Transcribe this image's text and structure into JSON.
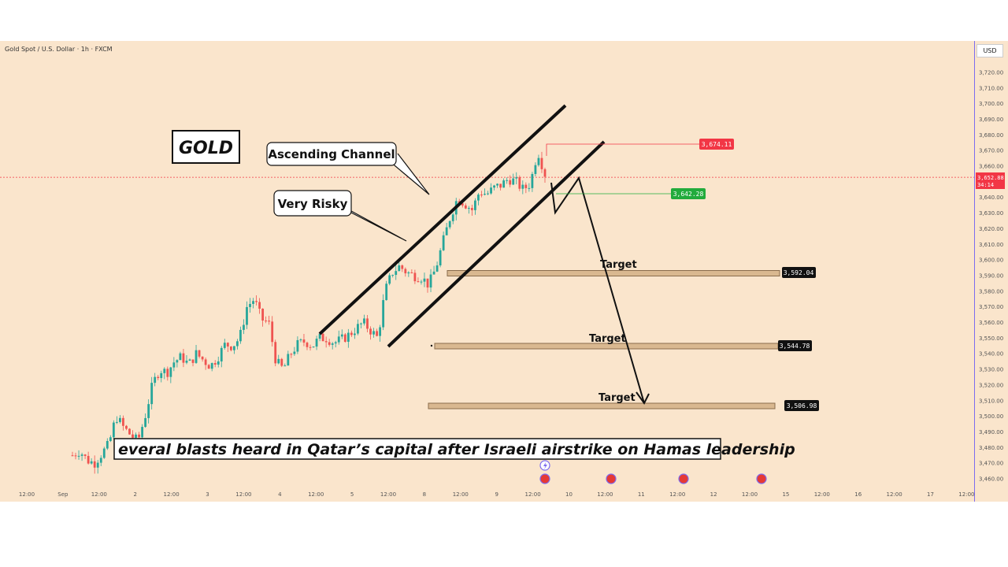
{
  "header": {
    "symbol_line": "Gold Spot / U.S. Dollar · 1h · FXCM",
    "currency": "USD"
  },
  "annotations": {
    "gold_label": "GOLD",
    "ascending_channel": "Ascending Channel",
    "very_risky": "Very Risky",
    "target_label": "Target",
    "news_banner": "everal blasts heard in Qatar’s capital after Israeli airstrike on Hamas leadership"
  },
  "price_tags": {
    "high": "3,674.11",
    "mid": "3,642.28",
    "current": "3,652.88",
    "countdown": "34:14",
    "target1": "3,592.04",
    "target2": "3,544.78",
    "target3": "3,506.98"
  },
  "colors": {
    "background": "#fae5cc",
    "up": "#26a69a",
    "down": "#ef5350",
    "red_tag": "#f23645",
    "green_tag": "#22ab3c",
    "target_zone": "#d9b890",
    "axis_border": "#7c6cf0"
  },
  "chart_data": {
    "type": "candlestick",
    "title": "Gold Spot / U.S. Dollar · 1h · FXCM",
    "ylim": [
      3455,
      3730
    ],
    "y_ticks": [
      "3,460.00",
      "3,470.00",
      "3,480.00",
      "3,490.00",
      "3,500.00",
      "3,510.00",
      "3,520.00",
      "3,530.00",
      "3,540.00",
      "3,550.00",
      "3,560.00",
      "3,570.00",
      "3,580.00",
      "3,590.00",
      "3,600.00",
      "3,610.00",
      "3,620.00",
      "3,630.00",
      "3,640.00",
      "3,650.00",
      "3,660.00",
      "3,670.00",
      "3,680.00",
      "3,690.00",
      "3,700.00",
      "3,710.00",
      "3,720.00"
    ],
    "x_ticks": [
      "12:00",
      "Sep",
      "12:00",
      "2",
      "12:00",
      "3",
      "12:00",
      "4",
      "12:00",
      "5",
      "12:00",
      "8",
      "12:00",
      "9",
      "12:00",
      "10",
      "12:00",
      "11",
      "12:00",
      "12",
      "12:00",
      "15",
      "12:00",
      "16",
      "12:00",
      "17",
      "12:00"
    ],
    "price_path": [
      3475,
      3478,
      3472,
      3470,
      3476,
      3482,
      3500,
      3493,
      3488,
      3484,
      3500,
      3520,
      3530,
      3528,
      3535,
      3538,
      3533,
      3540,
      3536,
      3532,
      3538,
      3546,
      3545,
      3550,
      3570,
      3575,
      3562,
      3560,
      3535,
      3530,
      3540,
      3546,
      3548,
      3545,
      3550,
      3550,
      3547,
      3549,
      3552,
      3556,
      3560,
      3555,
      3550,
      3580,
      3592,
      3596,
      3592,
      3590,
      3589,
      3584,
      3595,
      3612,
      3628,
      3640,
      3636,
      3632,
      3644,
      3642,
      3646,
      3648,
      3652,
      3650,
      3645,
      3649,
      3670,
      3655
    ],
    "levels": {
      "high": 3674.11,
      "mid": 3642.28,
      "current": 3652.88,
      "targets": [
        3592.04,
        3544.78,
        3506.98
      ]
    },
    "channel": {
      "upper": [
        [
          3550,
          3703
        ]
      ],
      "note": "ascending channel drawn on price action"
    }
  }
}
